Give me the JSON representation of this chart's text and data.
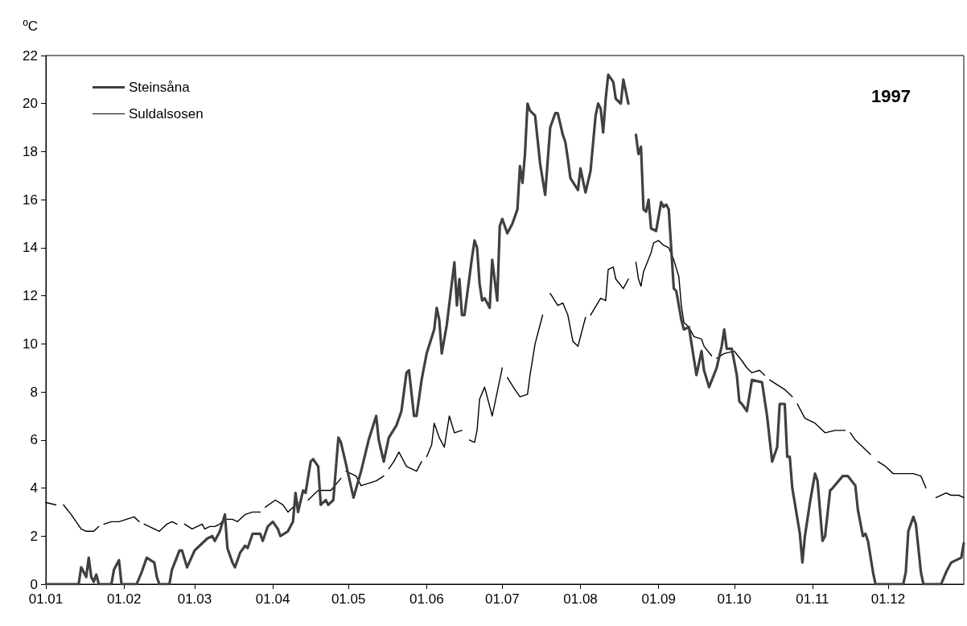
{
  "chart_data": {
    "type": "line",
    "ylabel": "ºC",
    "annotations": [
      "1997"
    ],
    "xlim": [
      "--01-01",
      "--12-31"
    ],
    "xticks": [
      {
        "value": "--01-01",
        "label": "01.01"
      },
      {
        "value": "--02-01",
        "label": "01.02"
      },
      {
        "value": "--03-01",
        "label": "01.03"
      },
      {
        "value": "--04-01",
        "label": "01.04"
      },
      {
        "value": "--05-01",
        "label": "01.05"
      },
      {
        "value": "--06-01",
        "label": "01.06"
      },
      {
        "value": "--07-01",
        "label": "01.07"
      },
      {
        "value": "--08-01",
        "label": "01.08"
      },
      {
        "value": "--09-01",
        "label": "01.09"
      },
      {
        "value": "--10-01",
        "label": "01.10"
      },
      {
        "value": "--11-01",
        "label": "01.11"
      },
      {
        "value": "--12-01",
        "label": "01.12"
      }
    ],
    "ylim": [
      0,
      22
    ],
    "yticks": [
      0,
      2,
      4,
      6,
      8,
      10,
      12,
      14,
      16,
      18,
      20,
      22
    ],
    "grid": false,
    "legend": "top left",
    "marker": "none",
    "line_style": "solid",
    "series": [
      {
        "name": "Steinsåna",
        "color": "#404040",
        "x": [
          "--01-01",
          "--01-14",
          "--01-15",
          "--01-17",
          "--01-18",
          "--01-19",
          "--01-20",
          "--01-21",
          "--01-22",
          "--01-27",
          "--01-28",
          "--01-30",
          "--01-31",
          "--02-06",
          "--02-08",
          "--02-10",
          "--02-13",
          "--02-14",
          "--02-15",
          "--02-19",
          "--02-20",
          "--02-23",
          "--02-24",
          "--02-26",
          "--03-01",
          "--03-04",
          "--03-06",
          "--03-08",
          "--03-09",
          "--03-11",
          "--03-13",
          "--03-14",
          "--03-16",
          "--03-17",
          "--03-19",
          "--03-21",
          "--03-22",
          "--03-24",
          "--03-27",
          "--03-28",
          "--03-30",
          "--04-01",
          "--04-03",
          "--04-04",
          "--04-07",
          "--04-09",
          "--04-10",
          "--04-11",
          "--04-13",
          "--04-14",
          "--04-16",
          "--04-17",
          "--04-19",
          "--04-20",
          "--04-22",
          "--04-23",
          "--04-25",
          "--04-27",
          "--04-28",
          "--04-30",
          "--05-03",
          "--05-06",
          "--05-09",
          "--05-12",
          "--05-13",
          "--05-15",
          "--05-17",
          "--05-20",
          "--05-22",
          "--05-24",
          "--05-25",
          "--05-27",
          "--05-28",
          "--05-30",
          "--06-01",
          "--06-04",
          "--06-05",
          "--06-06",
          "--06-07",
          "--06-09",
          "--06-12",
          "--06-13",
          "--06-14",
          "--06-15",
          "--06-16",
          "--06-19",
          "--06-20",
          "--06-21",
          "--06-22",
          "--06-23",
          "--06-24",
          "--06-26",
          "--06-27",
          "--06-29",
          "--06-30",
          "--07-01",
          "--07-03",
          "--07-05",
          "--07-07",
          "--07-08",
          "--07-09",
          "--07-10",
          "--07-11",
          "--07-12",
          "--07-14",
          "--07-15",
          "--07-16",
          "--07-18",
          "--07-20",
          "--07-22",
          "--07-23",
          "--07-25",
          "--07-26",
          "--07-27",
          "--07-28",
          "--07-31",
          "--08-01",
          "--08-03",
          "--08-05",
          "--08-07",
          "--08-08",
          "--08-09",
          "--08-10",
          "--08-11",
          "--08-12",
          "--08-14",
          "--08-15",
          "--08-17",
          "--08-18",
          "--08-20",
          "--08-22",
          "--08-23",
          "--08-24",
          "--08-25",
          "--08-26",
          "--08-27",
          "--08-28",
          "--08-29",
          "--08-31",
          "--09-02",
          "--09-03",
          "--09-04",
          "--09-05",
          "--09-07",
          "--09-08",
          "--09-10",
          "--09-11",
          "--09-13",
          "--09-16",
          "--09-18",
          "--09-19",
          "--09-21",
          "--09-24",
          "--09-26",
          "--09-27",
          "--09-28",
          "--09-30",
          "--10-02",
          "--10-03",
          "--10-04",
          "--10-06",
          "--10-08",
          "--10-12",
          "--10-14",
          "--10-16",
          "--10-18",
          "--10-19",
          "--10-21",
          "--10-22",
          "--10-23",
          "--10-24",
          "--10-27",
          "--10-28",
          "--10-29",
          "--10-31",
          "--11-02",
          "--11-03",
          "--11-05",
          "--11-06",
          "--11-08",
          "--11-09",
          "--11-13",
          "--11-15",
          "--11-18",
          "--11-19",
          "--11-21",
          "--11-22",
          "--11-23",
          "--11-25",
          "--11-26",
          "--12-07",
          "--12-08",
          "--12-09",
          "--12-11",
          "--12-12",
          "--12-14",
          "--12-15",
          "--12-22",
          "--12-24",
          "--12-26",
          "--12-28",
          "--12-30",
          "--12-31"
        ],
        "values": [
          0,
          0,
          0.7,
          0.3,
          1.1,
          0.3,
          0.1,
          0.4,
          0,
          0,
          0.6,
          1.0,
          0,
          0,
          0.5,
          1.1,
          0.9,
          0.3,
          0,
          0,
          0.6,
          1.4,
          1.4,
          0.7,
          1.4,
          1.7,
          1.9,
          2.0,
          1.8,
          2.2,
          2.9,
          1.5,
          0.9,
          0.7,
          1.3,
          1.6,
          1.5,
          2.1,
          2.1,
          1.8,
          2.4,
          2.6,
          2.3,
          2.0,
          2.2,
          2.6,
          3.8,
          3.0,
          3.9,
          3.8,
          5.1,
          5.2,
          4.9,
          3.3,
          3.5,
          3.3,
          3.5,
          6.1,
          5.9,
          5.0,
          3.6,
          4.7,
          6.0,
          7.0,
          6.0,
          5.1,
          6.1,
          6.6,
          7.2,
          8.8,
          8.9,
          7.0,
          7.0,
          8.5,
          9.6,
          10.6,
          11.5,
          11.0,
          9.6,
          10.8,
          13.4,
          11.6,
          12.7,
          11.2,
          11.2,
          13.6,
          14.3,
          14.0,
          12.5,
          11.8,
          11.9,
          11.5,
          13.5,
          11.8,
          14.9,
          15.2,
          14.6,
          15.0,
          15.6,
          17.4,
          16.7,
          17.9,
          20.0,
          19.7,
          19.5,
          18.5,
          17.5,
          16.2,
          19.0,
          19.6,
          19.6,
          18.7,
          18.4,
          17.7,
          16.9,
          16.4,
          17.3,
          16.3,
          17.2,
          19.5,
          20.0,
          19.8,
          18.8,
          20.2,
          21.2,
          20.9,
          20.2,
          20.0,
          21.0,
          20.0,
          null,
          18.7,
          17.9,
          18.2,
          15.6,
          15.5,
          16.0,
          14.8,
          14.7,
          15.9,
          15.7,
          15.8,
          15.6,
          12.3,
          12.2,
          11.0,
          10.6,
          10.7,
          8.7,
          9.7,
          8.9,
          8.2,
          9.0,
          9.9,
          10.6,
          9.8,
          9.8,
          8.7,
          7.6,
          7.5,
          7.2,
          8.5,
          8.4,
          7.0,
          5.1,
          5.7,
          7.5,
          7.5,
          5.3,
          5.3,
          4.0,
          2.1,
          0.9,
          2.0,
          3.4,
          4.6,
          4.3,
          1.8,
          2.0,
          3.9,
          4.0,
          4.5,
          4.5,
          4.1,
          3.1,
          2.0,
          2.1,
          1.8,
          0.5,
          0,
          0,
          0.5,
          2.2,
          2.8,
          2.5,
          0.5,
          0,
          0,
          0.5,
          0.9,
          1.0,
          1.1,
          1.7
        ]
      },
      {
        "name": "Suldalsosen",
        "color": "#000000",
        "x": [
          "--01-01",
          "--01-05",
          "--01-06",
          "--01-08",
          "--01-11",
          "--01-13",
          "--01-15",
          "--01-17",
          "--01-20",
          "--01-22",
          "--01-23",
          "--01-24",
          "--01-27",
          "--01-30",
          "--02-02",
          "--02-05",
          "--02-07",
          "--02-08",
          "--02-09",
          "--02-13",
          "--02-15",
          "--02-18",
          "--02-20",
          "--02-22",
          "--02-23",
          "--02-25",
          "--02-28",
          "--03-02",
          "--03-04",
          "--03-05",
          "--03-07",
          "--03-09",
          "--03-11",
          "--03-13",
          "--03-16",
          "--03-18",
          "--03-21",
          "--03-24",
          "--03-27",
          "--03-28",
          "--03-29",
          "--04-02",
          "--04-05",
          "--04-07",
          "--04-09",
          "--04-11",
          "--04-13",
          "--04-15",
          "--04-19",
          "--04-22",
          "--04-24",
          "--04-28",
          "--04-29",
          "--04-30",
          "--05-04",
          "--05-06",
          "--05-09",
          "--05-12",
          "--05-15",
          "--05-16",
          "--05-17",
          "--05-19",
          "--05-21",
          "--05-24",
          "--05-28",
          "--05-30",
          "--05-31",
          "--06-01",
          "--06-03",
          "--06-04",
          "--06-06",
          "--06-08",
          "--06-10",
          "--06-12",
          "--06-15",
          "--06-17",
          "--06-18",
          "--06-20",
          "--06-21",
          "--06-22",
          "--06-24",
          "--06-27",
          "--06-29",
          "--07-01",
          "--07-02",
          "--07-03",
          "--07-06",
          "--07-08",
          "--07-11",
          "--07-12",
          "--07-14",
          "--07-17",
          "--07-18",
          "--07-20",
          "--07-23",
          "--07-25",
          "--07-27",
          "--07-29",
          "--07-31",
          "--08-03",
          "--08-04",
          "--08-05",
          "--08-09",
          "--08-11",
          "--08-12",
          "--08-14",
          "--08-15",
          "--08-18",
          "--08-20",
          "--08-21",
          "--08-23",
          "--08-24",
          "--08-25",
          "--08-26",
          "--08-29",
          "--08-30",
          "--09-01",
          "--09-03",
          "--09-05",
          "--09-07",
          "--09-09",
          "--09-10",
          "--09-11",
          "--09-13",
          "--09-15",
          "--09-18",
          "--09-19",
          "--09-22",
          "--09-23",
          "--09-24",
          "--09-27",
          "--10-01",
          "--10-04",
          "--10-06",
          "--10-08",
          "--10-11",
          "--10-13",
          "--10-14",
          "--10-15",
          "--10-18",
          "--10-21",
          "--10-24",
          "--10-25",
          "--10-26",
          "--10-29",
          "--10-31",
          "--11-02",
          "--11-06",
          "--11-10",
          "--11-14",
          "--11-15",
          "--11-16",
          "--11-18",
          "--11-21",
          "--11-24",
          "--11-25",
          "--11-27",
          "--11-30",
          "--12-03",
          "--12-06",
          "--12-09",
          "--12-11",
          "--12-14",
          "--12-16",
          "--12-18",
          "--12-20",
          "--12-24",
          "--12-26",
          "--12-29",
          "--12-31"
        ],
        "values": [
          3.4,
          3.3,
          null,
          3.3,
          2.9,
          2.6,
          2.3,
          2.2,
          2.2,
          2.4,
          null,
          2.5,
          2.6,
          2.6,
          2.7,
          2.8,
          2.6,
          null,
          2.5,
          2.3,
          2.2,
          2.5,
          2.6,
          2.5,
          null,
          2.5,
          2.3,
          2.4,
          2.5,
          2.3,
          2.4,
          2.4,
          2.5,
          2.7,
          2.7,
          2.6,
          2.9,
          3.0,
          3.0,
          null,
          3.2,
          3.5,
          3.3,
          3.0,
          3.2,
          3.4,
          null,
          3.5,
          3.9,
          3.9,
          3.9,
          4.4,
          null,
          4.7,
          4.5,
          4.1,
          4.2,
          4.3,
          4.5,
          null,
          4.8,
          5.1,
          5.5,
          4.9,
          4.7,
          5.1,
          null,
          5.3,
          5.8,
          6.7,
          6.1,
          5.7,
          7.0,
          6.3,
          6.4,
          null,
          6.0,
          5.9,
          6.4,
          7.7,
          8.2,
          7.0,
          8.0,
          9.0,
          null,
          8.6,
          8.1,
          7.8,
          7.9,
          8.7,
          10.0,
          11.2,
          null,
          12.1,
          11.6,
          11.7,
          11.2,
          10.1,
          9.9,
          11.1,
          null,
          11.2,
          11.9,
          11.8,
          13.1,
          13.2,
          12.7,
          12.3,
          12.7,
          null,
          13.4,
          12.7,
          12.4,
          13.0,
          13.8,
          14.2,
          14.3,
          14.1,
          14.0,
          13.5,
          12.8,
          11.6,
          10.9,
          10.7,
          10.3,
          10.2,
          9.9,
          9.5,
          null,
          9.4,
          9.6,
          9.7,
          9.3,
          9.0,
          8.8,
          8.9,
          8.7,
          null,
          8.5,
          8.3,
          8.1,
          7.8,
          null,
          7.5,
          6.9,
          6.8,
          6.7,
          6.3,
          6.4,
          6.4,
          null,
          6.3,
          6.0,
          5.7,
          5.4,
          null,
          5.1,
          4.9,
          4.6,
          4.6,
          4.6,
          4.6,
          4.5,
          4.0,
          null,
          3.6,
          3.8,
          3.7,
          3.7,
          3.6
        ]
      }
    ]
  }
}
